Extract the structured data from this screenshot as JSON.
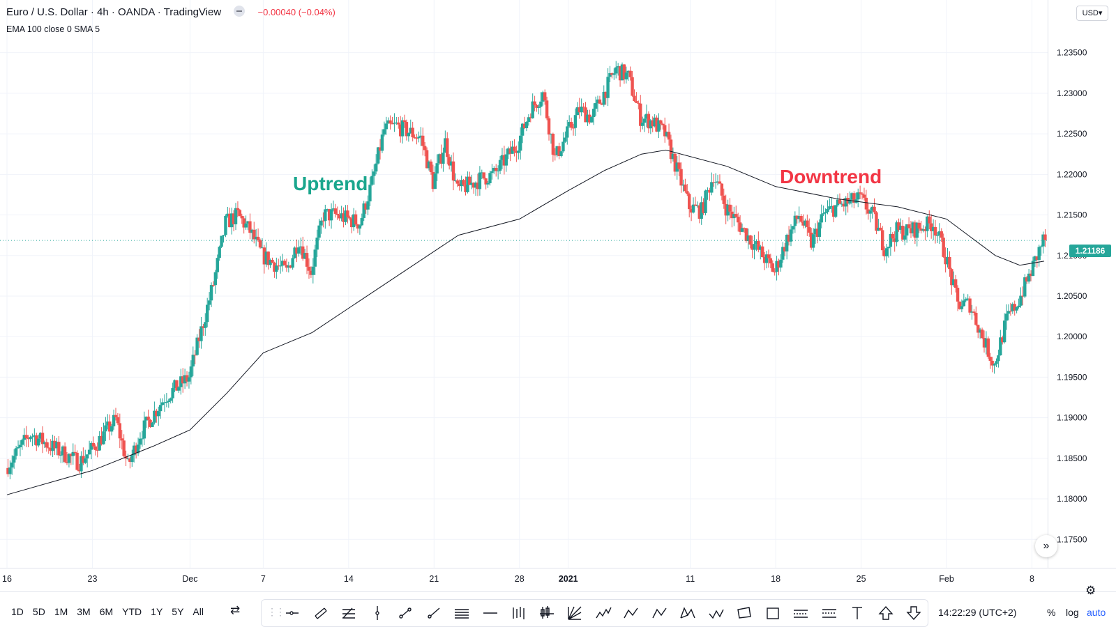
{
  "header": {
    "title": "Euro / U.S. Dollar · 4h · OANDA · TradingView",
    "change": "−0.00040 (−0.04%)",
    "indicators": "EMA 100 close 0 SMA 5",
    "currency": "USD▾"
  },
  "annotations": {
    "uptrend": "Uptrend",
    "downtrend": "Downtrend"
  },
  "last_price": "1.21186",
  "colors": {
    "up": "#26a69a",
    "down": "#ef5350",
    "ema": "#131722",
    "uptrend_text": "#1aa68d",
    "downtrend_text": "#f23645",
    "grid": "#f0f3fa",
    "accent": "#2962ff"
  },
  "bottom": {
    "ranges": [
      "1D",
      "5D",
      "1M",
      "3M",
      "6M",
      "YTD",
      "1Y",
      "5Y",
      "All"
    ],
    "clock": "14:22:29 (UTC+2)",
    "percent": "%",
    "log": "log",
    "auto": "auto"
  },
  "tools": [
    "horizontal-ray-icon",
    "parallel-channel-icon",
    "fib-retracement-icon",
    "vertical-line-icon",
    "trend-line-icon",
    "ray-icon",
    "horizontal-lines-icon",
    "horizontal-line-icon",
    "bars-pattern-icon",
    "candles-pattern-icon",
    "gann-fan-icon",
    "elliott-wave-12345-icon",
    "abcd-pattern-icon",
    "abc-correction-icon",
    "xabcd-pattern-icon",
    "wxy-pattern-icon",
    "rotated-rectangle-icon",
    "rectangle-icon",
    "long-position-icon",
    "short-position-icon",
    "text-icon",
    "arrow-up-icon",
    "arrow-down-icon"
  ],
  "chart_data": {
    "type": "candlestick",
    "symbol": "EUR/USD",
    "timeframe": "4h",
    "y_axis": {
      "ticks": [
        "1.23500",
        "1.23000",
        "1.22500",
        "1.22000",
        "1.21500",
        "1.21000",
        "1.20500",
        "1.20000",
        "1.19500",
        "1.19000",
        "1.18500",
        "1.18000",
        "1.17500"
      ],
      "ylim": [
        1.1715,
        1.2415
      ]
    },
    "x_axis": {
      "ticks": [
        "16",
        "23",
        "Dec",
        "7",
        "14",
        "21",
        "28",
        "2021",
        "11",
        "18",
        "25",
        "Feb",
        "8"
      ],
      "range": [
        "2020-11-16",
        "2021-02-09"
      ]
    },
    "price_path": [
      [
        "2020-11-16",
        1.1838
      ],
      [
        "2020-11-18",
        1.188
      ],
      [
        "2020-11-20",
        1.1862
      ],
      [
        "2020-11-22",
        1.1845
      ],
      [
        "2020-11-23",
        1.186
      ],
      [
        "2020-11-25",
        1.1898
      ],
      [
        "2020-11-26",
        1.184
      ],
      [
        "2020-11-27",
        1.188
      ],
      [
        "2020-11-29",
        1.1925
      ],
      [
        "2020-12-01",
        1.195
      ],
      [
        "2020-12-03",
        1.2065
      ],
      [
        "2020-12-04",
        1.214
      ],
      [
        "2020-12-05",
        1.215
      ],
      [
        "2020-12-06",
        1.213
      ],
      [
        "2020-12-07",
        1.21
      ],
      [
        "2020-12-09",
        1.208
      ],
      [
        "2020-12-10",
        1.212
      ],
      [
        "2020-12-11",
        1.208
      ],
      [
        "2020-12-12",
        1.215
      ],
      [
        "2020-12-13",
        1.215
      ],
      [
        "2020-12-15",
        1.214
      ],
      [
        "2020-12-16",
        1.219
      ],
      [
        "2020-12-17",
        1.2255
      ],
      [
        "2020-12-18",
        1.226
      ],
      [
        "2020-12-20",
        1.2245
      ],
      [
        "2020-12-21",
        1.219
      ],
      [
        "2020-12-22",
        1.224
      ],
      [
        "2020-12-23",
        1.218
      ],
      [
        "2020-12-25",
        1.2195
      ],
      [
        "2020-12-26",
        1.22
      ],
      [
        "2020-12-28",
        1.224
      ],
      [
        "2020-12-29",
        1.228
      ],
      [
        "2020-12-30",
        1.23
      ],
      [
        "2020-12-31",
        1.222
      ],
      [
        "2021-01-02",
        1.228
      ],
      [
        "2021-01-03",
        1.227
      ],
      [
        "2021-01-04",
        1.23
      ],
      [
        "2021-01-05",
        1.233
      ],
      [
        "2021-01-06",
        1.232
      ],
      [
        "2021-01-07",
        1.227
      ],
      [
        "2021-01-08",
        1.2265
      ],
      [
        "2021-01-09",
        1.225
      ],
      [
        "2021-01-11",
        1.216
      ],
      [
        "2021-01-12",
        1.2155
      ],
      [
        "2021-01-13",
        1.22
      ],
      [
        "2021-01-14",
        1.216
      ],
      [
        "2021-01-15",
        1.214
      ],
      [
        "2021-01-16",
        1.212
      ],
      [
        "2021-01-18",
        1.208
      ],
      [
        "2021-01-19",
        1.212
      ],
      [
        "2021-01-20",
        1.215
      ],
      [
        "2021-01-21",
        1.2115
      ],
      [
        "2021-01-22",
        1.215
      ],
      [
        "2021-01-23",
        1.216
      ],
      [
        "2021-01-24",
        1.2165
      ],
      [
        "2021-01-25",
        1.217
      ],
      [
        "2021-01-26",
        1.215
      ],
      [
        "2021-01-27",
        1.211
      ],
      [
        "2021-01-28",
        1.213
      ],
      [
        "2021-01-29",
        1.213
      ],
      [
        "2021-01-31",
        1.214
      ],
      [
        "2021-02-01",
        1.21
      ],
      [
        "2021-02-02",
        1.204
      ],
      [
        "2021-02-03",
        1.204
      ],
      [
        "2021-02-04",
        1.2
      ],
      [
        "2021-02-05",
        1.1965
      ],
      [
        "2021-02-06",
        1.202
      ],
      [
        "2021-02-07",
        1.2045
      ],
      [
        "2021-02-08",
        1.208
      ],
      [
        "2021-02-09",
        1.2119
      ]
    ],
    "ema100": [
      [
        "2020-11-16",
        1.1805
      ],
      [
        "2020-11-23",
        1.1835
      ],
      [
        "2020-11-28",
        1.1865
      ],
      [
        "2020-12-01",
        1.1885
      ],
      [
        "2020-12-04",
        1.193
      ],
      [
        "2020-12-07",
        1.198
      ],
      [
        "2020-12-11",
        1.2005
      ],
      [
        "2020-12-15",
        1.2045
      ],
      [
        "2020-12-19",
        1.2085
      ],
      [
        "2020-12-23",
        1.2125
      ],
      [
        "2020-12-28",
        1.2145
      ],
      [
        "2021-01-01",
        1.218
      ],
      [
        "2021-01-04",
        1.2205
      ],
      [
        "2021-01-07",
        1.2225
      ],
      [
        "2021-01-09",
        1.223
      ],
      [
        "2021-01-14",
        1.221
      ],
      [
        "2021-01-18",
        1.2185
      ],
      [
        "2021-01-23",
        1.217
      ],
      [
        "2021-01-28",
        1.216
      ],
      [
        "2021-02-01",
        1.2145
      ],
      [
        "2021-02-05",
        1.21
      ],
      [
        "2021-02-07",
        1.2088
      ],
      [
        "2021-02-09",
        1.2093
      ]
    ],
    "grid": true
  }
}
